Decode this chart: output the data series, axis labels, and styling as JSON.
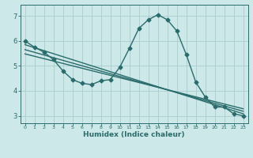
{
  "title": "",
  "xlabel": "Humidex (Indice chaleur)",
  "ylabel": "",
  "bg_color": "#cce8e8",
  "grid_color": "#aacccc",
  "line_color": "#2a6b6b",
  "xlim": [
    -0.5,
    23.5
  ],
  "ylim": [
    2.7,
    7.45
  ],
  "xticks": [
    0,
    1,
    2,
    3,
    4,
    5,
    6,
    7,
    8,
    9,
    10,
    11,
    12,
    13,
    14,
    15,
    16,
    17,
    18,
    19,
    20,
    21,
    22,
    23
  ],
  "yticks": [
    3,
    4,
    5,
    6,
    7
  ],
  "line1_x": [
    0,
    1,
    2,
    3,
    4,
    5,
    6,
    7,
    8,
    9,
    10,
    11,
    12,
    13,
    14,
    15,
    16,
    17,
    18,
    19,
    20,
    21,
    22,
    23
  ],
  "line1_y": [
    6.0,
    5.75,
    5.55,
    5.25,
    4.8,
    4.45,
    4.3,
    4.25,
    4.4,
    4.45,
    4.95,
    5.7,
    6.5,
    6.85,
    7.05,
    6.85,
    6.4,
    5.45,
    4.35,
    3.75,
    3.35,
    3.35,
    3.08,
    3.0
  ],
  "line2_x": [
    0,
    23
  ],
  "line2_y": [
    5.85,
    3.08
  ],
  "line3_x": [
    0,
    23
  ],
  "line3_y": [
    5.65,
    3.18
  ],
  "line4_x": [
    0,
    23
  ],
  "line4_y": [
    5.48,
    3.28
  ],
  "marker": "D",
  "markersize": 2.5,
  "linewidth": 1.0
}
